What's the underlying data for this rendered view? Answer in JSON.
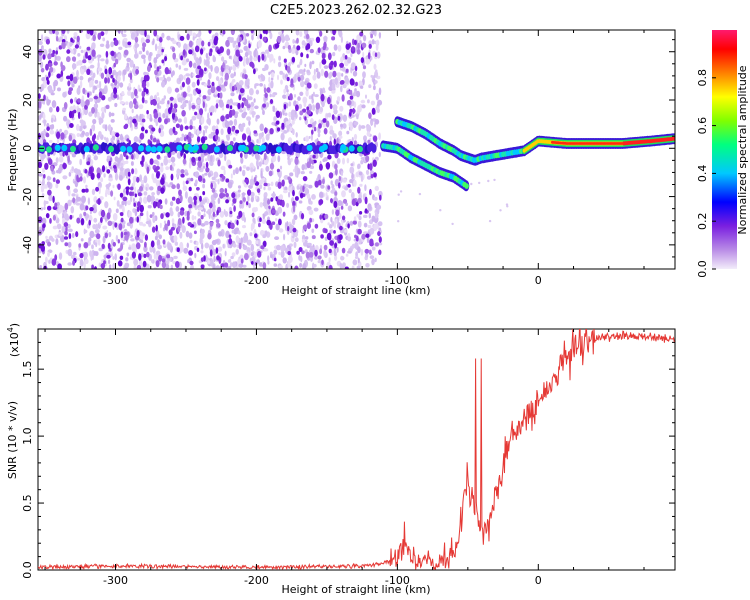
{
  "chart_data": [
    {
      "type": "heatmap",
      "title": "C2E5.2023.262.02.32.G23",
      "xlabel": "Height of straight line (km)",
      "ylabel": "Frequency (Hz)",
      "xlim": [
        -355,
        97
      ],
      "ylim": [
        -50,
        49
      ],
      "x_ticks": [
        -300,
        -200,
        -100,
        0
      ],
      "y_ticks": [
        -40,
        -20,
        0,
        20,
        40
      ],
      "colorbar": {
        "label": "Normalized spectral amplitude",
        "range": [
          0.0,
          1.0
        ],
        "ticks": [
          "0.0",
          "0.2",
          "0.4",
          "0.6",
          "0.8"
        ],
        "colors": [
          "#f0e6f8",
          "#8a2be2",
          "#0000ff",
          "#00bfff",
          "#00ff7f",
          "#7fff00",
          "#ffff00",
          "#ff8000",
          "#ff0000",
          "#ff1a66"
        ]
      },
      "noise_region_x": [
        -355,
        -112
      ],
      "baseline_freq": 0,
      "baseline_x": [
        -355,
        -115
      ],
      "branch_upper": {
        "x": [
          -100,
          -90,
          -80,
          -70,
          -60,
          -55,
          -50,
          -45,
          -40,
          -30,
          -20,
          -10,
          0,
          20,
          40,
          60,
          80,
          97
        ],
        "y": [
          11,
          9,
          6,
          2,
          -1,
          -3,
          -4,
          -5,
          -4,
          -3,
          -2,
          -1,
          3,
          2,
          2,
          2,
          3,
          4
        ]
      },
      "branch_lower": {
        "x": [
          -110,
          -100,
          -95,
          -90,
          -80,
          -70,
          -60,
          -55,
          -50
        ],
        "y": [
          1,
          0,
          -2,
          -4,
          -7,
          -10,
          -12,
          -14,
          -16
        ]
      },
      "core_segment_x": [
        -10,
        97
      ]
    },
    {
      "type": "line",
      "xlabel": "Height of straight line (km)",
      "ylabel": "SNR (10 * v/v)",
      "exponent_label": "(x10",
      "exponent_power": "4",
      "exponent_close": ")",
      "xlim": [
        -355,
        97
      ],
      "ylim": [
        0,
        1.8
      ],
      "x_ticks": [
        -300,
        -200,
        -100,
        0
      ],
      "y_ticks": [
        "0.0",
        "0.5",
        "1.0",
        "1.5"
      ],
      "color": "#e53935",
      "profile": {
        "x": [
          -355,
          -300,
          -200,
          -120,
          -100,
          -95,
          -90,
          -80,
          -70,
          -60,
          -55,
          -50,
          -45,
          -40,
          -35,
          -30,
          -25,
          -20,
          -15,
          -10,
          -5,
          0,
          10,
          20,
          30,
          40,
          60,
          80,
          97
        ],
        "y": [
          0.02,
          0.03,
          0.02,
          0.03,
          0.08,
          0.25,
          0.07,
          0.09,
          0.05,
          0.12,
          0.35,
          0.7,
          0.5,
          0.3,
          0.35,
          0.6,
          0.75,
          0.95,
          1.05,
          1.1,
          1.15,
          1.25,
          1.4,
          1.6,
          1.7,
          1.73,
          1.75,
          1.74,
          1.72
        ]
      }
    }
  ]
}
